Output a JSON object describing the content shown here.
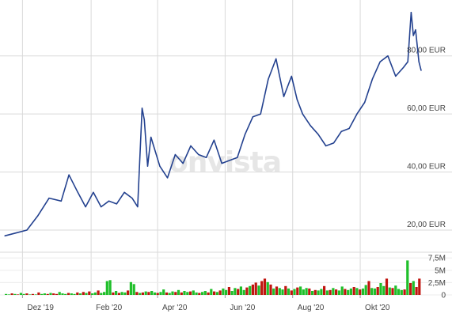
{
  "watermark": "onvista",
  "colors": {
    "line": "#23418f",
    "grid": "#d9d9d9",
    "vol_up": "#1fbf2a",
    "vol_down": "#c0150f",
    "text": "#444444"
  },
  "chart_data": [
    {
      "type": "line",
      "title": "",
      "xlabel": "",
      "ylabel": "",
      "unit": "EUR",
      "grid": true,
      "ylim": [
        17,
        96
      ],
      "x_ticks": [
        "Dez '19",
        "Feb '20",
        "Apr '20",
        "Jun '20",
        "Aug '20",
        "Okt '20"
      ],
      "y_ticks": [
        "20,00 EUR",
        "40,00 EUR",
        "60,00 EUR",
        "80,00 EUR"
      ],
      "y_tick_values": [
        20,
        40,
        60,
        80
      ],
      "x": [
        "2019-11-15",
        "2019-11-25",
        "2019-12-05",
        "2019-12-15",
        "2019-12-25",
        "2020-01-05",
        "2020-01-12",
        "2020-01-20",
        "2020-01-27",
        "2020-02-03",
        "2020-02-10",
        "2020-02-17",
        "2020-02-24",
        "2020-03-02",
        "2020-03-09",
        "2020-03-14",
        "2020-03-18",
        "2020-03-20",
        "2020-03-23",
        "2020-03-26",
        "2020-03-30",
        "2020-04-03",
        "2020-04-10",
        "2020-04-17",
        "2020-04-24",
        "2020-05-01",
        "2020-05-08",
        "2020-05-15",
        "2020-05-22",
        "2020-05-29",
        "2020-06-05",
        "2020-06-12",
        "2020-06-19",
        "2020-06-26",
        "2020-07-03",
        "2020-07-10",
        "2020-07-17",
        "2020-07-24",
        "2020-07-31",
        "2020-08-05",
        "2020-08-10",
        "2020-08-17",
        "2020-08-24",
        "2020-08-31",
        "2020-09-07",
        "2020-09-14",
        "2020-09-21",
        "2020-09-28",
        "2020-10-05",
        "2020-10-12",
        "2020-10-19",
        "2020-10-26",
        "2020-11-02",
        "2020-11-09",
        "2020-11-13",
        "2020-11-16",
        "2020-11-18",
        "2020-11-20",
        "2020-11-23",
        "2020-11-25"
      ],
      "values": [
        18,
        19,
        20,
        25,
        31,
        30,
        39,
        33,
        28,
        33,
        28,
        30,
        29,
        33,
        31,
        28,
        62,
        58,
        42,
        52,
        47,
        42,
        38,
        46,
        43,
        49,
        46,
        45,
        51,
        43,
        44,
        45,
        53,
        59,
        60,
        72,
        79,
        66,
        73,
        65,
        60,
        56,
        53,
        49,
        50,
        54,
        55,
        60,
        64,
        72,
        78,
        80,
        73,
        76,
        78,
        95,
        87,
        89,
        78,
        75
      ]
    },
    {
      "type": "bar",
      "title": "",
      "xlabel": "",
      "ylabel": "",
      "ylim": [
        0,
        8.5
      ],
      "y_ticks": [
        "0",
        "2,5M",
        "5M",
        "7,5M"
      ],
      "y_tick_values": [
        0,
        2.5,
        5,
        7.5
      ],
      "x_start": "2019-11-15",
      "x_end": "2020-11-25",
      "values": [
        0.2,
        0.1,
        0.3,
        0.2,
        0.1,
        0.4,
        0.2,
        0.3,
        0.1,
        0.2,
        0.1,
        0.5,
        0.2,
        0.3,
        0.2,
        0.4,
        0.3,
        0.2,
        0.6,
        0.3,
        0.2,
        0.4,
        0.3,
        0.2,
        0.5,
        0.3,
        0.6,
        0.4,
        0.7,
        0.3,
        0.5,
        0.9,
        0.4,
        0.6,
        2.8,
        3.0,
        0.5,
        0.8,
        0.4,
        0.6,
        0.5,
        0.9,
        2.6,
        2.2,
        0.6,
        0.4,
        0.5,
        0.7,
        0.6,
        0.8,
        0.5,
        0.4,
        0.6,
        1.1,
        0.5,
        0.4,
        0.7,
        0.6,
        1.0,
        0.5,
        0.8,
        0.6,
        0.7,
        0.9,
        0.5,
        0.4,
        0.6,
        0.8,
        0.5,
        1.2,
        0.7,
        0.6,
        0.9,
        1.3,
        1.0,
        1.6,
        0.8,
        1.4,
        1.2,
        1.7,
        1.0,
        1.5,
        1.8,
        2.1,
        2.5,
        1.9,
        2.8,
        3.3,
        2.6,
        2.1,
        1.3,
        1.7,
        1.4,
        1.1,
        1.8,
        1.3,
        0.9,
        1.2,
        1.5,
        1.7,
        1.1,
        1.4,
        1.3,
        0.8,
        1.0,
        0.9,
        1.2,
        1.8,
        0.9,
        1.0,
        1.4,
        1.1,
        0.9,
        1.7,
        1.2,
        1.0,
        1.3,
        1.6,
        1.4,
        1.1,
        1.3,
        2.0,
        2.8,
        1.4,
        1.3,
        1.6,
        2.4,
        1.8,
        3.3,
        1.5,
        1.4,
        1.9,
        1.2,
        1.0,
        1.1,
        7.0,
        2.4,
        2.8,
        1.6,
        3.3
      ],
      "up": [
        1,
        1,
        0,
        1,
        0,
        1,
        1,
        0,
        1,
        0,
        1,
        0,
        1,
        1,
        0,
        1,
        0,
        0,
        1,
        1,
        1,
        0,
        1,
        1,
        0,
        1,
        0,
        1,
        0,
        1,
        1,
        0,
        1,
        1,
        1,
        1,
        0,
        1,
        0,
        1,
        1,
        0,
        1,
        1,
        0,
        1,
        0,
        1,
        0,
        1,
        1,
        0,
        1,
        1,
        0,
        1,
        1,
        0,
        1,
        0,
        1,
        1,
        0,
        1,
        1,
        0,
        1,
        1,
        0,
        1,
        0,
        1,
        0,
        1,
        1,
        0,
        1,
        1,
        0,
        1,
        1,
        0,
        1,
        0,
        0,
        1,
        0,
        0,
        1,
        0,
        1,
        0,
        1,
        1,
        0,
        1,
        0,
        1,
        0,
        1,
        1,
        1,
        0,
        1,
        0,
        1,
        1,
        0,
        1,
        0,
        1,
        0,
        1,
        1,
        0,
        1,
        1,
        0,
        1,
        0,
        1,
        1,
        0,
        1,
        1,
        0,
        1,
        1,
        0,
        1,
        0,
        1,
        1,
        1,
        0,
        1,
        0,
        1,
        0,
        0
      ]
    }
  ]
}
